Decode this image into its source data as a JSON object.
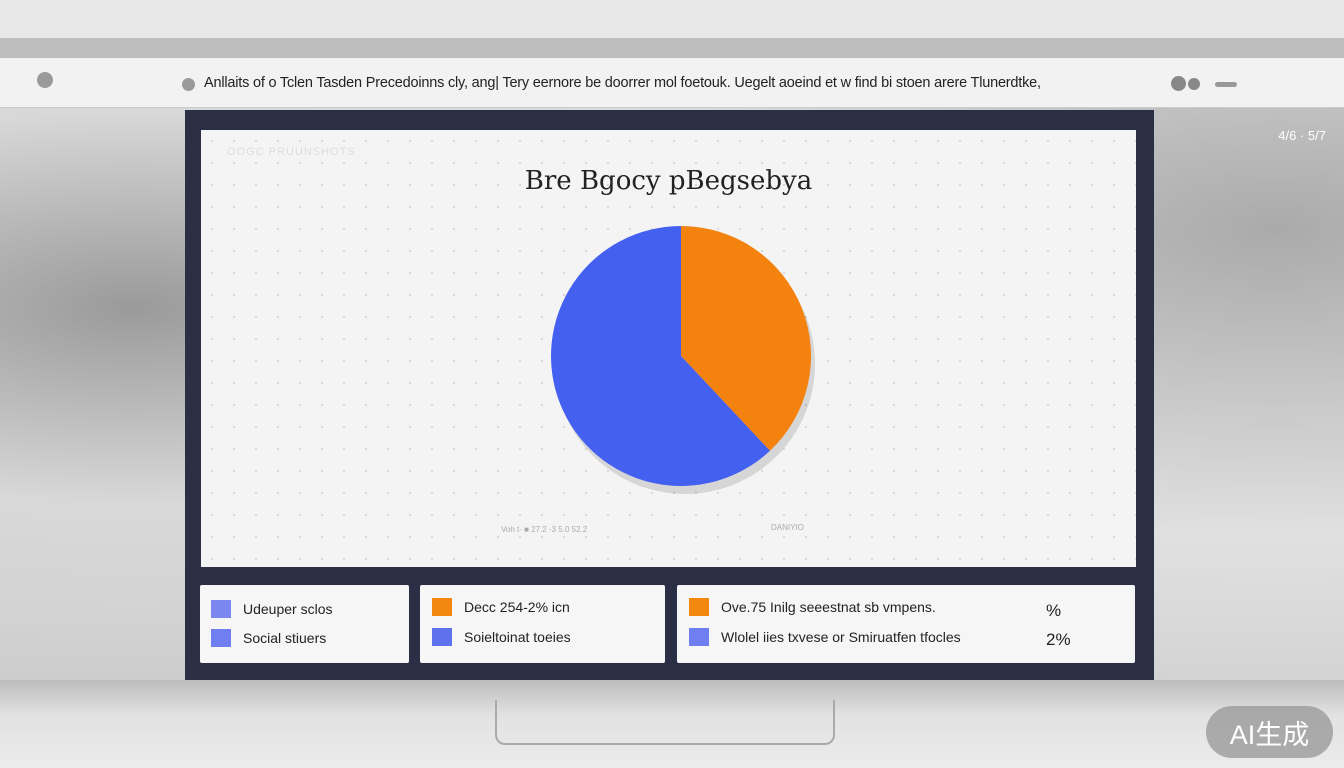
{
  "header": {
    "title": "Anllaits of o Tclen Tasden Precedoinns cly, ang| Tery eernore be doorrer mol foetouk. Uegelt aoeind et w find bi stoen arere Tlunerdtke,"
  },
  "corner_text": "4/6 · 5/7",
  "chart": {
    "watermark": "OOGC PRUUNSHOTS",
    "title": "Bre Bgocy pBegsebya",
    "footnote_left": "Voh t· ■ 27.2 ·3 5.0 52.2",
    "footnote_right": "DANIYIO",
    "colors": {
      "blue": "#4460f0",
      "orange": "#f4820f"
    }
  },
  "chart_data": {
    "type": "pie",
    "title": "Bre Bgocy pBegsebya",
    "values": [
      38,
      62
    ],
    "colors": [
      "#f4820f",
      "#4460f0"
    ]
  },
  "legend": {
    "card1": [
      {
        "label": "Udeuper sclos",
        "color": "#7b86f0"
      },
      {
        "label": "Social stiuers",
        "color": "#6f7ef0"
      }
    ],
    "card2": [
      {
        "label": "Decc 254-2% icn",
        "color": "#f4870f"
      },
      {
        "label": "Soieltoinat toeies",
        "color": "#5f72ee"
      }
    ],
    "card3": [
      {
        "label": "Ove.75 Inilg seeestnat sb vmpens.",
        "color": "#f4870f",
        "value": "%"
      },
      {
        "label": "Wlolel iies txvese or Smiruatfen tfocles",
        "color": "#6f7ef0",
        "value": "2%"
      }
    ]
  },
  "badge": "AI生成"
}
